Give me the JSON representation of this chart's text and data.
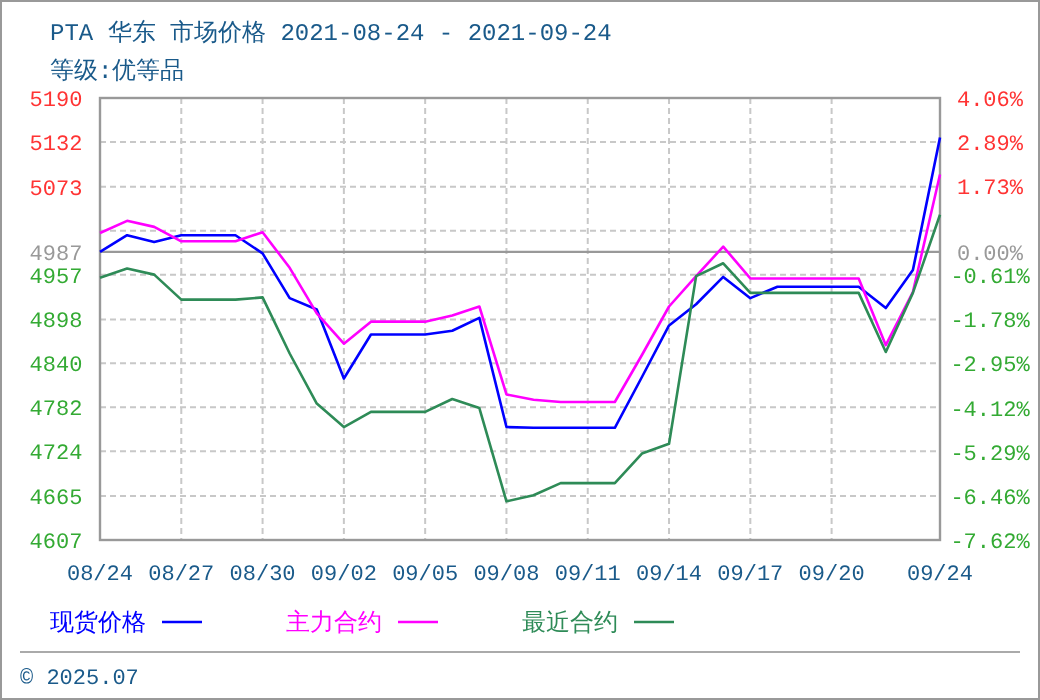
{
  "chart_data": {
    "type": "line",
    "title": "PTA 华东 市场价格 2021-08-24 - 2021-09-24",
    "subtitle": "等级:优等品",
    "annotations": [
      "© 2025.07"
    ],
    "x": [
      "2021-08-24",
      "2021-08-25",
      "2021-08-26",
      "2021-08-27",
      "2021-08-28",
      "2021-08-29",
      "2021-08-30",
      "2021-08-31",
      "2021-09-01",
      "2021-09-02",
      "2021-09-03",
      "2021-09-04",
      "2021-09-05",
      "2021-09-06",
      "2021-09-07",
      "2021-09-08",
      "2021-09-09",
      "2021-09-10",
      "2021-09-11",
      "2021-09-12",
      "2021-09-13",
      "2021-09-14",
      "2021-09-15",
      "2021-09-16",
      "2021-09-17",
      "2021-09-18",
      "2021-09-19",
      "2021-09-20",
      "2021-09-21",
      "2021-09-22",
      "2021-09-23",
      "2021-09-24"
    ],
    "series": [
      {
        "name": "现货价格",
        "color": "#0000ff",
        "values": [
          4987,
          5009,
          5000,
          5009,
          5009,
          5009,
          4985,
          4926,
          4911,
          4820,
          4878,
          4878,
          4878,
          4883,
          4900,
          4756,
          4755,
          4755,
          4755,
          4755,
          4822,
          4890,
          4918,
          4954,
          4926,
          4941,
          4941,
          4941,
          4941,
          4913,
          4963,
          5138
        ]
      },
      {
        "name": "主力合约",
        "color": "#ff00ff",
        "values": [
          5012,
          5028,
          5020,
          5001,
          5001,
          5001,
          5013,
          4966,
          4906,
          4866,
          4895,
          4895,
          4895,
          4903,
          4915,
          4799,
          4792,
          4789,
          4789,
          4789,
          4851,
          4915,
          4955,
          4994,
          4952,
          4952,
          4952,
          4952,
          4952,
          4864,
          4934,
          5089
        ]
      },
      {
        "name": "最近合约",
        "color": "#2e8b57",
        "values": [
          4953,
          4965,
          4957,
          4924,
          4924,
          4924,
          4927,
          4853,
          4787,
          4756,
          4776,
          4776,
          4776,
          4793,
          4781,
          4658,
          4666,
          4682,
          4682,
          4682,
          4721,
          4734,
          4955,
          4972,
          4933,
          4933,
          4933,
          4933,
          4933,
          4855,
          4933,
          5036
        ]
      }
    ],
    "xlim": [
      "2021-08-24",
      "2021-09-24"
    ],
    "xticks": [
      {
        "value": "2021-08-24",
        "label": "08/24"
      },
      {
        "value": "2021-08-27",
        "label": "08/27"
      },
      {
        "value": "2021-08-30",
        "label": "08/30"
      },
      {
        "value": "2021-09-02",
        "label": "09/02"
      },
      {
        "value": "2021-09-05",
        "label": "09/05"
      },
      {
        "value": "2021-09-08",
        "label": "09/08"
      },
      {
        "value": "2021-09-11",
        "label": "09/11"
      },
      {
        "value": "2021-09-14",
        "label": "09/14"
      },
      {
        "value": "2021-09-17",
        "label": "09/17"
      },
      {
        "value": "2021-09-20",
        "label": "09/20"
      },
      {
        "value": "2021-09-24",
        "label": "09/24"
      }
    ],
    "ylim": [
      4607,
      5190
    ],
    "yticks": [
      4607,
      4665,
      4724,
      4782,
      4840,
      4898,
      4957,
      4987,
      {
        "value": 5015,
        "label": null
      },
      5073,
      5132,
      5190
    ],
    "y2lim": [
      -7.62,
      4.06
    ],
    "y2ticks": [
      {
        "value": -7.62,
        "label": "-7.62%"
      },
      {
        "value": -6.46,
        "label": "-6.46%"
      },
      {
        "value": -5.29,
        "label": "-5.29%"
      },
      {
        "value": -4.12,
        "label": "-4.12%"
      },
      {
        "value": -2.95,
        "label": "-2.95%"
      },
      {
        "value": -1.78,
        "label": "-1.78%"
      },
      {
        "value": -0.61,
        "label": "-0.61%"
      },
      {
        "value": 0,
        "label": "0.00%"
      },
      {
        "value": 1.73,
        "label": "1.73%"
      },
      {
        "value": 2.89,
        "label": "2.89%"
      },
      {
        "value": 4.06,
        "label": "4.06%"
      }
    ],
    "ref_lines": [
      {
        "axis": "y",
        "value": 4987,
        "color": "#999999"
      }
    ],
    "grid": true,
    "legend": "bottom left",
    "marker": "none",
    "line_style": "solid"
  }
}
